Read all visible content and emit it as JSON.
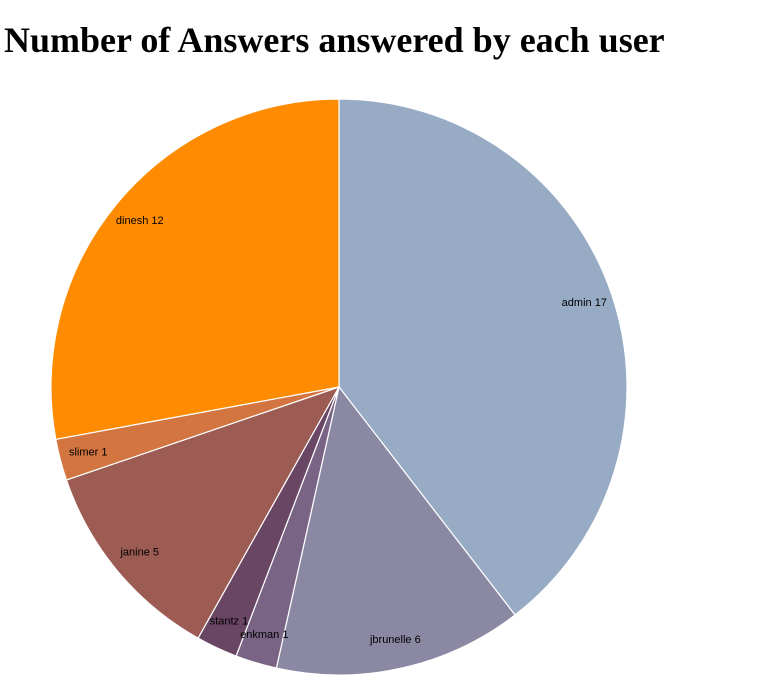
{
  "title": "Number of Answers answered by each user",
  "chart_data": {
    "type": "pie",
    "title": "Number of Answers answered by each user",
    "start_angle": "12 o'clock",
    "direction": "clockwise",
    "slices": [
      {
        "label": "admin",
        "value": 17,
        "display": "admin 17",
        "color": "#97abc5"
      },
      {
        "label": "jbrunelle",
        "value": 6,
        "display": "jbrunelle 6",
        "color": "#8a88a3"
      },
      {
        "label": "enkman",
        "value": 1,
        "display": "enkman 1",
        "color": "#7a6485"
      },
      {
        "label": "stantz",
        "value": 1,
        "display": "stantz 1",
        "color": "#6a4665"
      },
      {
        "label": "janine",
        "value": 5,
        "display": "janine 5",
        "color": "#9c5b53"
      },
      {
        "label": "slimer",
        "value": 1,
        "display": "slimer 1",
        "color": "#d27540"
      },
      {
        "label": "dinesh",
        "value": 12,
        "display": "dinesh 12",
        "color": "#ff8c00"
      }
    ]
  }
}
